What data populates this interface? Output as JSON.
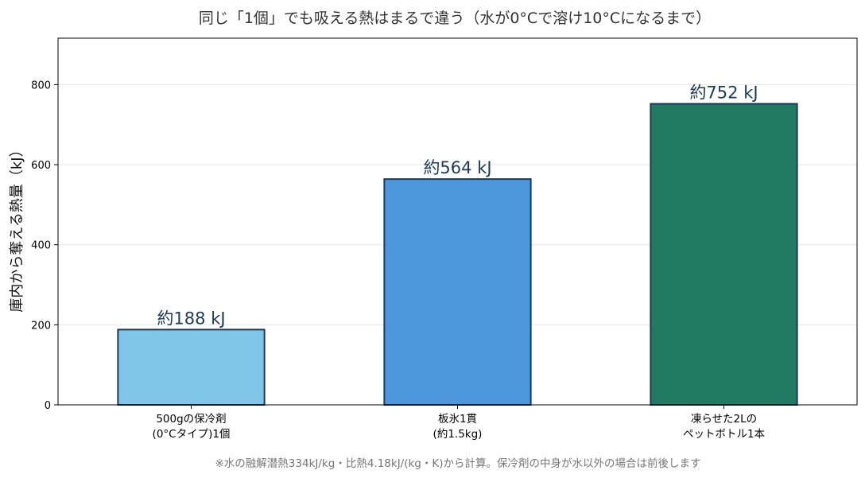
{
  "chart_data": {
    "type": "bar",
    "title": "同じ「1個」でも吸える熱はまるで違う（水が0°Cで溶け10°Cになるまで）",
    "xlabel": "",
    "ylabel": "庫内から奪える熱量（kJ）",
    "categories": [
      [
        "500gの保冷剤",
        "(0°Cタイプ)1個"
      ],
      [
        "板氷1貫",
        "(約1.5kg)"
      ],
      [
        "凍らせた2Lの",
        "ペットボトル1本"
      ]
    ],
    "values": [
      188,
      564,
      752
    ],
    "value_labels": [
      "約188 kJ",
      "約564 kJ",
      "約752 kJ"
    ],
    "bar_colors": [
      "#7fc6e8",
      "#4d98dc",
      "#227a63"
    ],
    "bar_edge_color": "#1e3a52",
    "value_label_color": "#1e3a52",
    "ylim": [
      0,
      916
    ],
    "yticks": [
      0,
      200,
      400,
      600,
      800
    ],
    "grid": true,
    "legend": "none"
  },
  "footnote": "※水の融解潜熱334kJ/kg・比熱4.18kJ/(kg・K)から計算。保冷剤の中身が水以外の場合は前後します"
}
